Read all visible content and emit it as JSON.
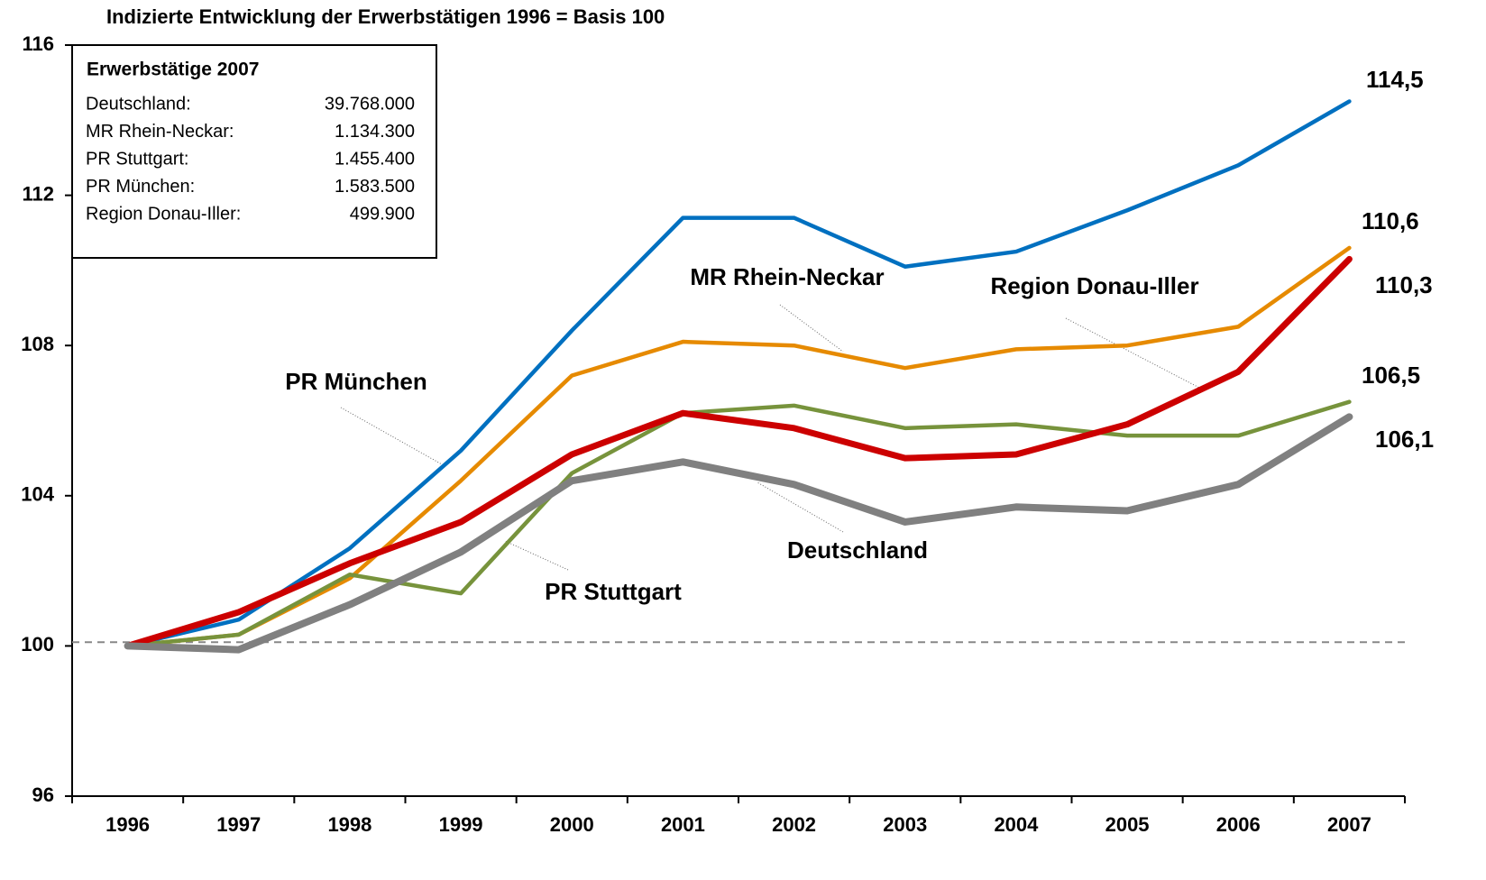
{
  "chart_data": {
    "type": "line",
    "title": "Indizierte Entwicklung der Erwerbstätigen 1996 = Basis 100",
    "categories": [
      "1996",
      "1997",
      "1998",
      "1999",
      "2000",
      "2001",
      "2002",
      "2003",
      "2004",
      "2005",
      "2006",
      "2007"
    ],
    "series": [
      {
        "name": "Deutschland",
        "color": "#808080",
        "values": [
          100,
          99.9,
          101.1,
          102.5,
          104.4,
          104.9,
          104.3,
          103.3,
          103.7,
          103.6,
          104.3,
          106.1
        ],
        "value_labels": [
          null,
          null,
          null,
          null,
          null,
          null,
          null,
          null,
          null,
          null,
          null,
          "106,1"
        ]
      },
      {
        "name": "MR Rhein-Neckar",
        "color": "#cc0000",
        "values": [
          100,
          100.9,
          102.2,
          103.3,
          105.1,
          106.2,
          105.8,
          105.0,
          105.1,
          105.9,
          107.3,
          110.3
        ],
        "value_labels": [
          null,
          null,
          null,
          null,
          null,
          null,
          null,
          null,
          null,
          null,
          null,
          "110,3"
        ]
      },
      {
        "name": "PR Stuttgart",
        "color": "#77933c",
        "values": [
          100,
          100.3,
          101.9,
          101.4,
          104.6,
          106.2,
          106.4,
          105.8,
          105.9,
          105.6,
          105.6,
          106.5
        ],
        "value_labels": [
          null,
          null,
          null,
          null,
          null,
          null,
          null,
          null,
          null,
          null,
          null,
          "106,5"
        ]
      },
      {
        "name": "PR München",
        "color": "#0070c0",
        "values": [
          100,
          100.7,
          102.6,
          105.2,
          108.4,
          111.4,
          111.4,
          110.1,
          110.5,
          111.6,
          112.8,
          114.5
        ],
        "value_labels": [
          null,
          null,
          null,
          null,
          null,
          null,
          null,
          null,
          null,
          null,
          null,
          "114,5"
        ]
      },
      {
        "name": "Region Donau-Iller",
        "color": "#e68a00",
        "values": [
          100,
          100.3,
          101.8,
          104.4,
          107.2,
          108.1,
          108.0,
          107.4,
          107.9,
          108.0,
          108.5,
          110.6
        ],
        "value_labels": [
          null,
          null,
          null,
          null,
          null,
          null,
          null,
          null,
          null,
          null,
          null,
          "110,6"
        ]
      }
    ],
    "baseline": 100.1,
    "ylim": [
      96,
      116
    ],
    "yticks": [
      96,
      100,
      104,
      108,
      112,
      116
    ],
    "grid": false,
    "inset": {
      "title": "Erwerbstätige 2007",
      "rows": [
        [
          "Deutschland:",
          "39.768.000"
        ],
        [
          "MR Rhein-Neckar:",
          "1.134.300"
        ],
        [
          "PR Stuttgart:",
          "1.455.400"
        ],
        [
          "PR München:",
          "1.583.500"
        ],
        [
          "Region Donau-Iller:",
          "499.900"
        ]
      ]
    }
  }
}
